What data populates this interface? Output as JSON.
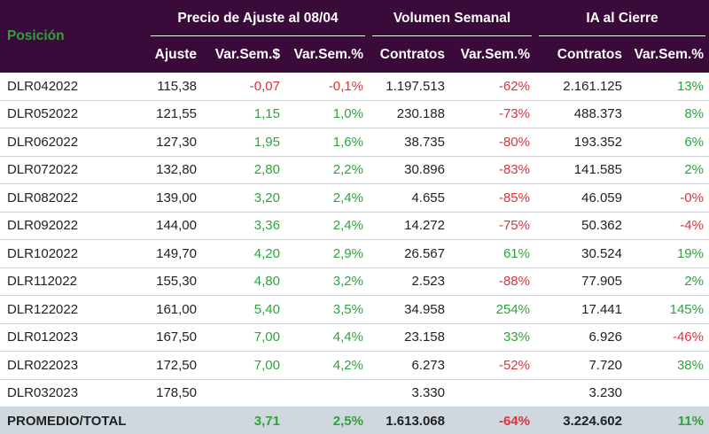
{
  "header": {
    "position_label": "Posición",
    "groups": [
      {
        "label": "Precio de Ajuste al 08/04"
      },
      {
        "label": "Volumen Semanal"
      },
      {
        "label": "IA al Cierre"
      }
    ],
    "subcolumns": [
      "Ajuste",
      "Var.Sem.$",
      "Var.Sem.%",
      "Contratos",
      "Var.Sem.%",
      "Contratos",
      "Var.Sem.%"
    ]
  },
  "colors": {
    "header_bg": "#3a0a3a",
    "negative": "#e0313b",
    "positive": "#2fa33b",
    "footer_bg": "#cfd8de"
  },
  "rows": [
    {
      "pos": "DLR042022",
      "ajuste": "115,38",
      "var_usd": "-0,07",
      "var_usd_s": "neg",
      "var_pct": "-0,1%",
      "var_pct_s": "neg",
      "vol": "1.197.513",
      "vol_var": "-62%",
      "vol_var_s": "neg",
      "ia": "2.161.125",
      "ia_var": "13%",
      "ia_var_s": "pos"
    },
    {
      "pos": "DLR052022",
      "ajuste": "121,55",
      "var_usd": "1,15",
      "var_usd_s": "pos",
      "var_pct": "1,0%",
      "var_pct_s": "pos",
      "vol": "230.188",
      "vol_var": "-73%",
      "vol_var_s": "neg",
      "ia": "488.373",
      "ia_var": "8%",
      "ia_var_s": "pos"
    },
    {
      "pos": "DLR062022",
      "ajuste": "127,30",
      "var_usd": "1,95",
      "var_usd_s": "pos",
      "var_pct": "1,6%",
      "var_pct_s": "pos",
      "vol": "38.735",
      "vol_var": "-80%",
      "vol_var_s": "neg",
      "ia": "193.352",
      "ia_var": "6%",
      "ia_var_s": "pos"
    },
    {
      "pos": "DLR072022",
      "ajuste": "132,80",
      "var_usd": "2,80",
      "var_usd_s": "pos",
      "var_pct": "2,2%",
      "var_pct_s": "pos",
      "vol": "30.896",
      "vol_var": "-83%",
      "vol_var_s": "neg",
      "ia": "141.585",
      "ia_var": "2%",
      "ia_var_s": "pos"
    },
    {
      "pos": "DLR082022",
      "ajuste": "139,00",
      "var_usd": "3,20",
      "var_usd_s": "pos",
      "var_pct": "2,4%",
      "var_pct_s": "pos",
      "vol": "4.655",
      "vol_var": "-85%",
      "vol_var_s": "neg",
      "ia": "46.059",
      "ia_var": "-0%",
      "ia_var_s": "neg"
    },
    {
      "pos": "DLR092022",
      "ajuste": "144,00",
      "var_usd": "3,36",
      "var_usd_s": "pos",
      "var_pct": "2,4%",
      "var_pct_s": "pos",
      "vol": "14.272",
      "vol_var": "-75%",
      "vol_var_s": "neg",
      "ia": "50.362",
      "ia_var": "-4%",
      "ia_var_s": "neg"
    },
    {
      "pos": "DLR102022",
      "ajuste": "149,70",
      "var_usd": "4,20",
      "var_usd_s": "pos",
      "var_pct": "2,9%",
      "var_pct_s": "pos",
      "vol": "26.567",
      "vol_var": "61%",
      "vol_var_s": "pos",
      "ia": "30.524",
      "ia_var": "19%",
      "ia_var_s": "pos"
    },
    {
      "pos": "DLR112022",
      "ajuste": "155,30",
      "var_usd": "4,80",
      "var_usd_s": "pos",
      "var_pct": "3,2%",
      "var_pct_s": "pos",
      "vol": "2.523",
      "vol_var": "-88%",
      "vol_var_s": "neg",
      "ia": "77.905",
      "ia_var": "2%",
      "ia_var_s": "pos"
    },
    {
      "pos": "DLR122022",
      "ajuste": "161,00",
      "var_usd": "5,40",
      "var_usd_s": "pos",
      "var_pct": "3,5%",
      "var_pct_s": "pos",
      "vol": "34.958",
      "vol_var": "254%",
      "vol_var_s": "pos",
      "ia": "17.441",
      "ia_var": "145%",
      "ia_var_s": "pos"
    },
    {
      "pos": "DLR012023",
      "ajuste": "167,50",
      "var_usd": "7,00",
      "var_usd_s": "pos",
      "var_pct": "4,4%",
      "var_pct_s": "pos",
      "vol": "23.158",
      "vol_var": "33%",
      "vol_var_s": "pos",
      "ia": "6.926",
      "ia_var": "-46%",
      "ia_var_s": "neg"
    },
    {
      "pos": "DLR022023",
      "ajuste": "172,50",
      "var_usd": "7,00",
      "var_usd_s": "pos",
      "var_pct": "4,2%",
      "var_pct_s": "pos",
      "vol": "6.273",
      "vol_var": "-52%",
      "vol_var_s": "neg",
      "ia": "7.720",
      "ia_var": "38%",
      "ia_var_s": "pos"
    },
    {
      "pos": "DLR032023",
      "ajuste": "178,50",
      "var_usd": "",
      "var_usd_s": "",
      "var_pct": "",
      "var_pct_s": "",
      "vol": "3.330",
      "vol_var": "",
      "vol_var_s": "",
      "ia": "3.230",
      "ia_var": "",
      "ia_var_s": ""
    }
  ],
  "total": {
    "label": "PROMEDIO/TOTAL",
    "ajuste": "",
    "var_usd": "3,71",
    "var_usd_s": "pos",
    "var_pct": "2,5%",
    "var_pct_s": "pos",
    "vol": "1.613.068",
    "vol_var": "-64%",
    "vol_var_s": "neg",
    "ia": "3.224.602",
    "ia_var": "11%",
    "ia_var_s": "pos"
  }
}
